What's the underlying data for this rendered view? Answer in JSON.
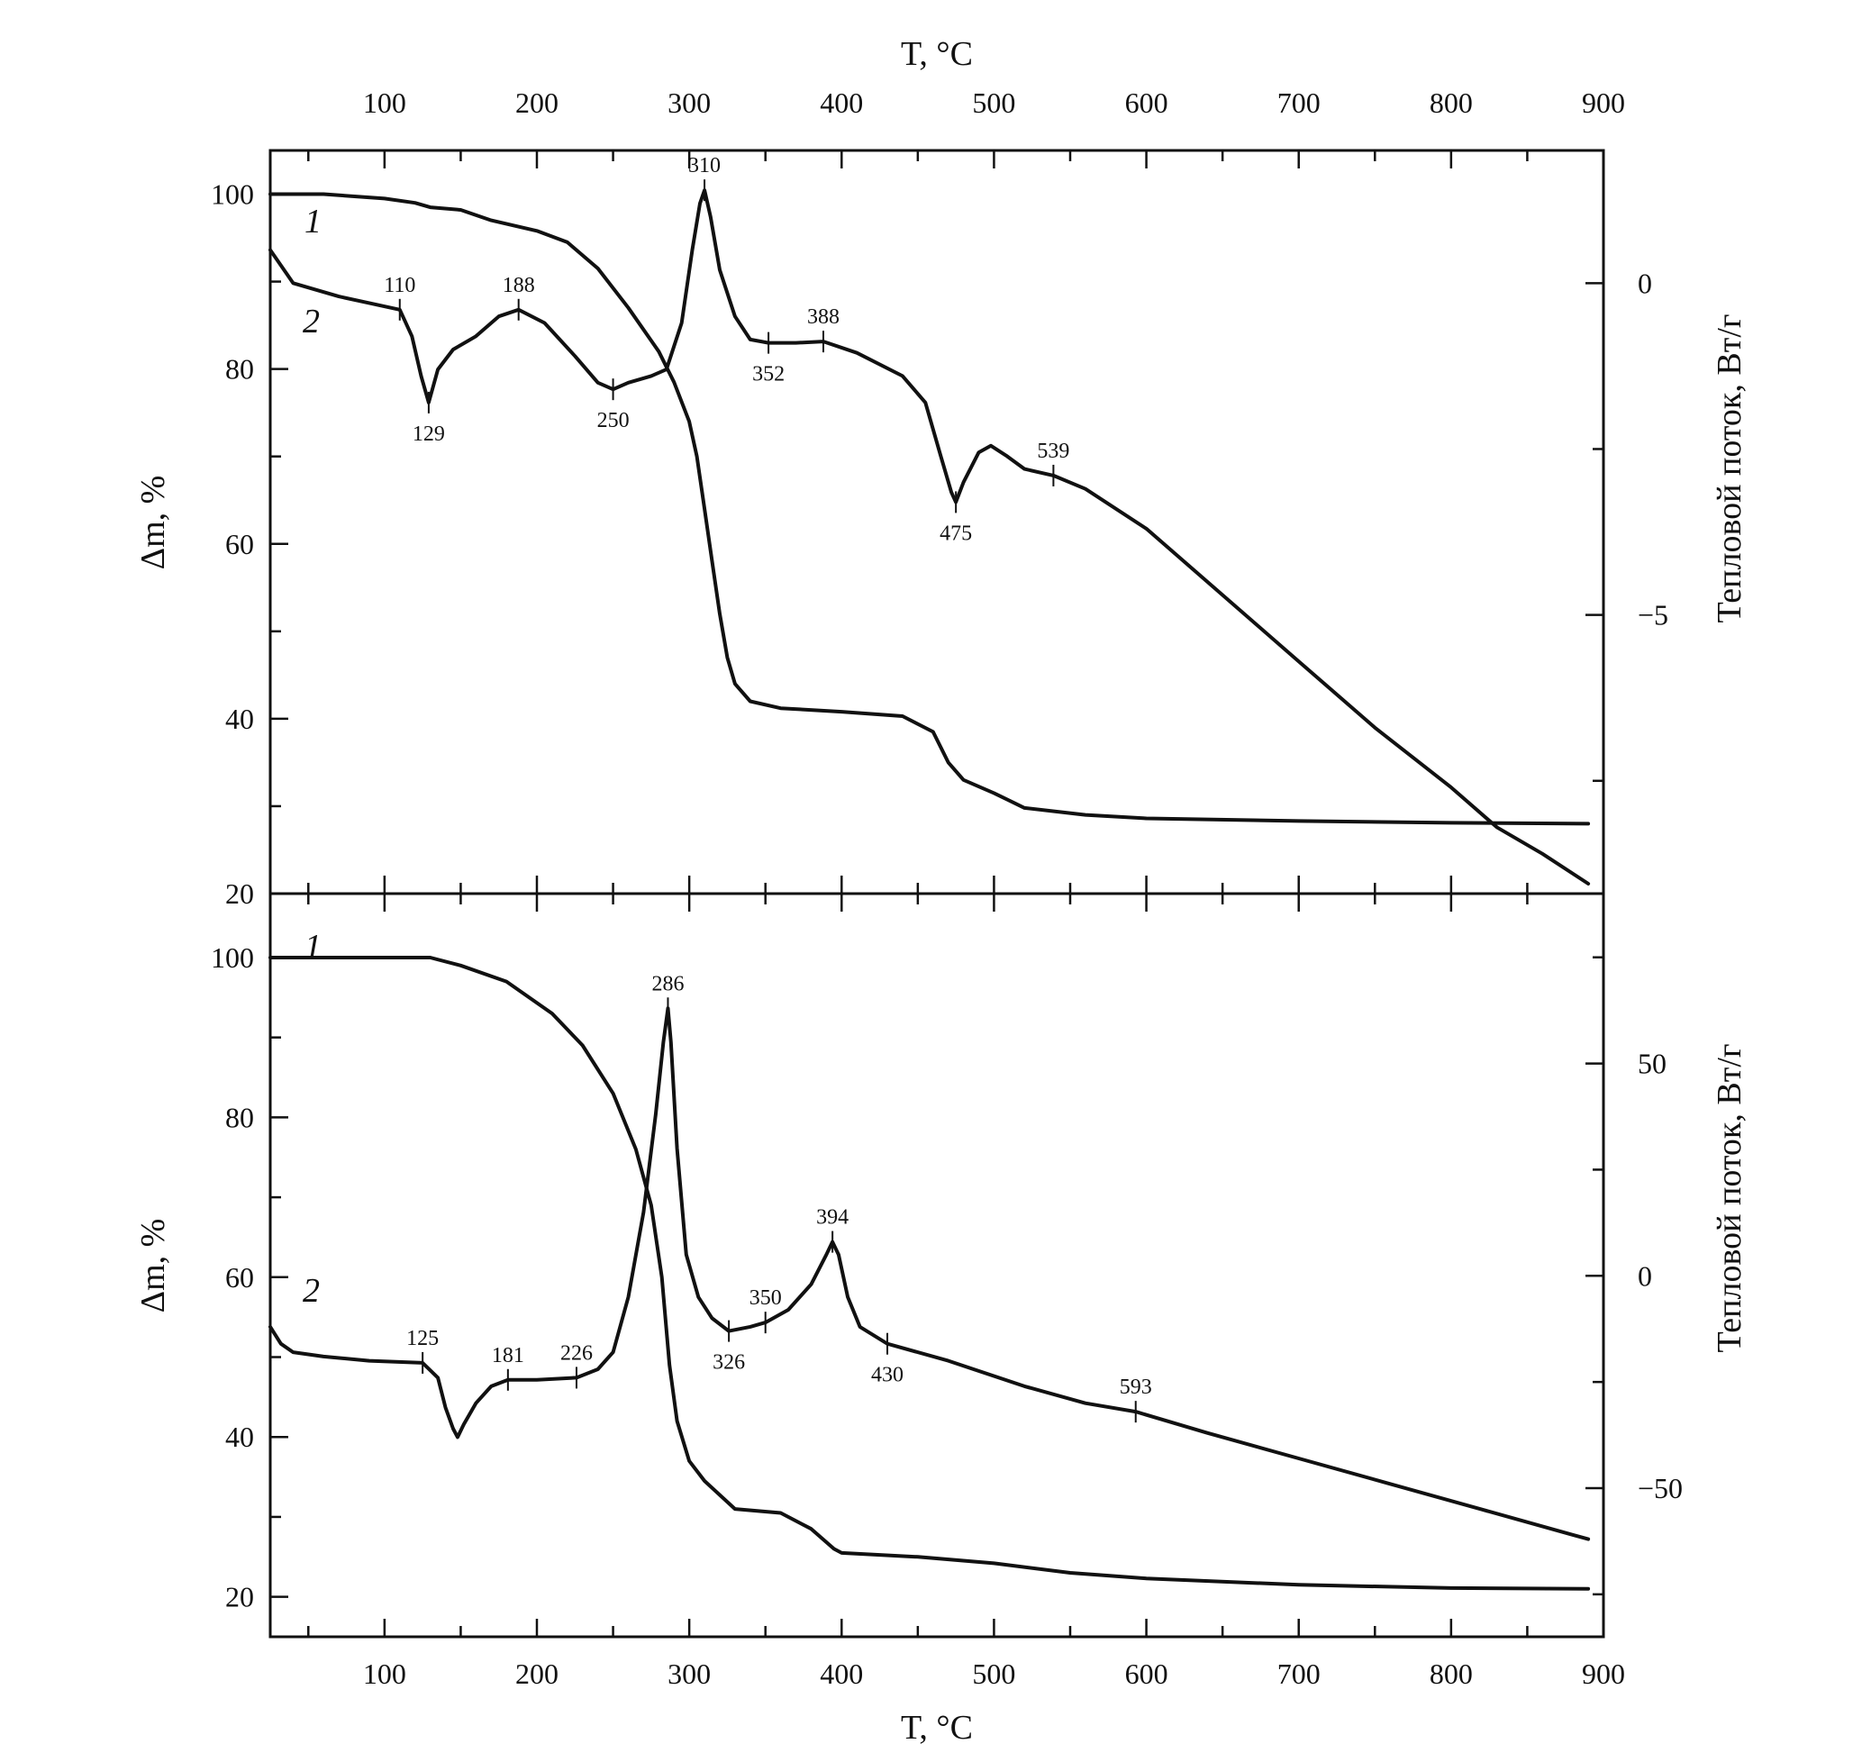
{
  "chart_data": [
    {
      "type": "line",
      "top_axis_label": "T, °C",
      "xlim": [
        25,
        900
      ],
      "xticks": [
        100,
        200,
        300,
        400,
        500,
        600,
        700,
        800,
        900
      ],
      "ylabel": "Δm, %",
      "ylim": [
        20,
        105
      ],
      "yticks": [
        20,
        40,
        60,
        80,
        100
      ],
      "y2label": "Тепловой поток, Вт/г",
      "y2lim": [
        -9.2,
        2.0
      ],
      "y2ticks": [
        -5,
        0
      ],
      "series": [
        {
          "name": "1",
          "axis": "left",
          "x": [
            25,
            60,
            100,
            120,
            130,
            150,
            170,
            200,
            220,
            240,
            260,
            280,
            290,
            300,
            305,
            310,
            315,
            320,
            325,
            330,
            340,
            360,
            400,
            440,
            460,
            470,
            480,
            500,
            520,
            560,
            600,
            700,
            800,
            890
          ],
          "y": [
            100,
            100,
            99.5,
            99.0,
            98.5,
            98.2,
            97.0,
            95.8,
            94.5,
            91.5,
            87.0,
            82.0,
            78.5,
            74.0,
            70.0,
            64.0,
            58.0,
            52.0,
            47.0,
            44.0,
            42.0,
            41.2,
            40.8,
            40.3,
            38.5,
            35.0,
            33.0,
            31.5,
            29.8,
            29.0,
            28.6,
            28.3,
            28.1,
            28.0
          ]
        },
        {
          "name": "2",
          "axis": "right",
          "x": [
            25,
            40,
            55,
            70,
            90,
            110,
            118,
            124,
            129,
            135,
            145,
            160,
            175,
            188,
            205,
            225,
            240,
            250,
            260,
            275,
            285,
            295,
            302,
            307,
            310,
            314,
            320,
            330,
            340,
            352,
            370,
            388,
            410,
            440,
            455,
            465,
            472,
            475,
            480,
            490,
            498,
            508,
            520,
            539,
            560,
            600,
            650,
            700,
            750,
            800,
            830,
            860,
            890
          ],
          "y": [
            0.5,
            0.0,
            -0.1,
            -0.2,
            -0.3,
            -0.4,
            -0.8,
            -1.4,
            -1.8,
            -1.3,
            -1.0,
            -0.8,
            -0.5,
            -0.4,
            -0.6,
            -1.1,
            -1.5,
            -1.6,
            -1.5,
            -1.4,
            -1.3,
            -0.6,
            0.5,
            1.2,
            1.4,
            1.0,
            0.2,
            -0.5,
            -0.85,
            -0.9,
            -0.9,
            -0.88,
            -1.05,
            -1.4,
            -1.8,
            -2.6,
            -3.15,
            -3.3,
            -3.0,
            -2.55,
            -2.45,
            -2.6,
            -2.8,
            -2.9,
            -3.1,
            -3.7,
            -4.7,
            -5.7,
            -6.7,
            -7.6,
            -8.2,
            -8.6,
            -9.05
          ]
        }
      ],
      "annotations": [
        {
          "text": "110",
          "x": 110,
          "y": -0.4,
          "label": "above"
        },
        {
          "text": "129",
          "x": 129,
          "y": -1.8,
          "label": "below"
        },
        {
          "text": "188",
          "x": 188,
          "y": -0.4,
          "label": "above"
        },
        {
          "text": "250",
          "x": 250,
          "y": -1.6,
          "label": "below"
        },
        {
          "text": "310",
          "x": 310,
          "y": 1.4,
          "label": "above"
        },
        {
          "text": "352",
          "x": 352,
          "y": -0.9,
          "label": "below"
        },
        {
          "text": "388",
          "x": 388,
          "y": -0.88,
          "label": "above"
        },
        {
          "text": "475",
          "x": 475,
          "y": -3.3,
          "label": "below"
        },
        {
          "text": "539",
          "x": 539,
          "y": -2.9,
          "label": "above"
        }
      ]
    },
    {
      "type": "line",
      "xlabel": "T, °C",
      "xlim": [
        25,
        900
      ],
      "xticks": [
        100,
        200,
        300,
        400,
        500,
        600,
        700,
        800,
        900
      ],
      "ylabel": "Δm, %",
      "ylim": [
        15,
        108
      ],
      "yticks": [
        20,
        40,
        60,
        80,
        100
      ],
      "y2label": "Тепловой поток, Вт/г",
      "y2lim": [
        -85,
        90
      ],
      "y2ticks": [
        -50,
        0,
        50
      ],
      "series": [
        {
          "name": "1",
          "axis": "left",
          "x": [
            25,
            100,
            130,
            150,
            180,
            210,
            230,
            250,
            265,
            275,
            282,
            287,
            292,
            300,
            310,
            330,
            360,
            380,
            395,
            400,
            450,
            500,
            550,
            600,
            700,
            800,
            890
          ],
          "y": [
            100,
            100,
            100,
            99.0,
            97.0,
            93.0,
            89.0,
            83.0,
            76.0,
            69.0,
            60.0,
            49.0,
            42.0,
            37.0,
            34.5,
            31.0,
            30.5,
            28.5,
            26.0,
            25.5,
            25.0,
            24.2,
            23.0,
            22.3,
            21.5,
            21.1,
            21.0
          ]
        },
        {
          "name": "2",
          "axis": "right",
          "x": [
            25,
            32,
            40,
            60,
            90,
            125,
            135,
            140,
            145,
            148,
            152,
            160,
            170,
            181,
            200,
            226,
            240,
            250,
            260,
            270,
            278,
            283,
            286,
            288,
            292,
            298,
            306,
            315,
            326,
            340,
            350,
            365,
            380,
            390,
            394,
            398,
            404,
            412,
            430,
            470,
            520,
            560,
            593,
            640,
            700,
            760,
            820,
            880,
            890
          ],
          "y": [
            -12,
            -16,
            -18,
            -19,
            -20,
            -20.5,
            -24,
            -31,
            -36,
            -38,
            -35,
            -30,
            -26,
            -24.5,
            -24.5,
            -24,
            -22,
            -18,
            -5,
            15,
            38,
            55,
            63,
            55,
            30,
            5,
            -5,
            -10,
            -13,
            -12,
            -11,
            -8,
            -2,
            5,
            8,
            5,
            -5,
            -12,
            -16,
            -20,
            -26,
            -30,
            -32,
            -37,
            -43,
            -49,
            -55,
            -61,
            -62
          ]
        }
      ],
      "annotations": [
        {
          "text": "125",
          "x": 125,
          "y": -20.5,
          "label": "above"
        },
        {
          "text": "181",
          "x": 181,
          "y": -24.5,
          "label": "above"
        },
        {
          "text": "226",
          "x": 226,
          "y": -24,
          "label": "above"
        },
        {
          "text": "286",
          "x": 286,
          "y": 63,
          "label": "above"
        },
        {
          "text": "326",
          "x": 326,
          "y": -13,
          "label": "below"
        },
        {
          "text": "350",
          "x": 350,
          "y": -11,
          "label": "above"
        },
        {
          "text": "394",
          "x": 394,
          "y": 8,
          "label": "above"
        },
        {
          "text": "430",
          "x": 430,
          "y": -16,
          "label": "below"
        },
        {
          "text": "593",
          "x": 593,
          "y": -32,
          "label": "above"
        }
      ]
    }
  ]
}
